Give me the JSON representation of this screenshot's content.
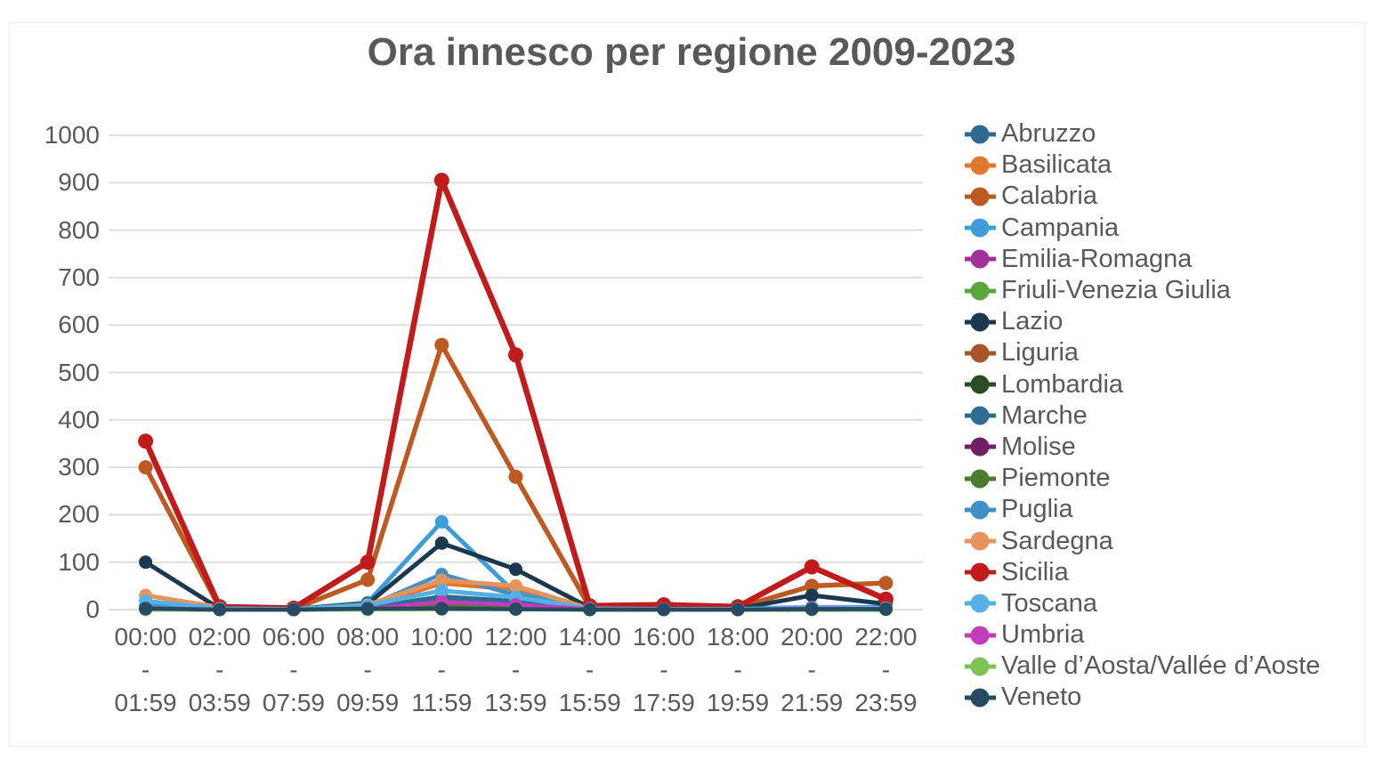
{
  "chart": {
    "title": "Ora innesco per regione 2009-2023"
  },
  "chart_data": {
    "type": "line",
    "title": "Ora innesco per regione 2009-2023",
    "xlabel": "",
    "ylabel": "",
    "ylim": [
      0,
      1000
    ],
    "ytick_step": 100,
    "yticks": [
      0,
      100,
      200,
      300,
      400,
      500,
      600,
      700,
      800,
      900,
      1000
    ],
    "grid": "horizontal",
    "legend_position": "right",
    "category_separator": "-",
    "categories": [
      {
        "from": "00:00",
        "to": "01:59"
      },
      {
        "from": "02:00",
        "to": "03:59"
      },
      {
        "from": "06:00",
        "to": "07:59"
      },
      {
        "from": "08:00",
        "to": "09:59"
      },
      {
        "from": "10:00",
        "to": "11:59"
      },
      {
        "from": "12:00",
        "to": "13:59"
      },
      {
        "from": "14:00",
        "to": "15:59"
      },
      {
        "from": "16:00",
        "to": "17:59"
      },
      {
        "from": "18:00",
        "to": "19:59"
      },
      {
        "from": "20:00",
        "to": "21:59"
      },
      {
        "from": "22:00",
        "to": "23:59"
      }
    ],
    "series": [
      {
        "name": "Abruzzo",
        "color": "#2E6A8F",
        "line_width": 4.5,
        "marker_r": 7,
        "values": [
          5,
          1,
          0,
          4,
          28,
          18,
          1,
          1,
          0,
          2,
          2
        ]
      },
      {
        "name": "Basilicata",
        "color": "#E0772E",
        "line_width": 4.5,
        "marker_r": 7,
        "values": [
          6,
          1,
          0,
          6,
          55,
          42,
          1,
          1,
          1,
          3,
          3
        ]
      },
      {
        "name": "Calabria",
        "color": "#BE5A21",
        "line_width": 5.5,
        "marker_r": 8,
        "values": [
          300,
          4,
          1,
          63,
          558,
          280,
          5,
          8,
          4,
          50,
          56
        ]
      },
      {
        "name": "Campania",
        "color": "#3E9CD9",
        "line_width": 5,
        "marker_r": 7.5,
        "values": [
          8,
          2,
          1,
          15,
          185,
          34,
          3,
          2,
          2,
          5,
          5
        ]
      },
      {
        "name": "Emilia-Romagna",
        "color": "#A23199",
        "line_width": 4.5,
        "marker_r": 7,
        "values": [
          2,
          0,
          0,
          2,
          12,
          8,
          0,
          0,
          0,
          1,
          1
        ]
      },
      {
        "name": "Friuli-Venezia Giulia",
        "color": "#5BA53C",
        "line_width": 4.5,
        "marker_r": 7,
        "values": [
          1,
          0,
          0,
          1,
          5,
          3,
          0,
          0,
          0,
          1,
          0
        ]
      },
      {
        "name": "Lazio",
        "color": "#1A394F",
        "line_width": 5,
        "marker_r": 7.5,
        "values": [
          100,
          2,
          1,
          12,
          140,
          85,
          4,
          3,
          2,
          30,
          12
        ]
      },
      {
        "name": "Liguria",
        "color": "#A65629",
        "line_width": 4.5,
        "marker_r": 7,
        "values": [
          2,
          0,
          0,
          2,
          9,
          6,
          0,
          0,
          0,
          1,
          1
        ]
      },
      {
        "name": "Lombardia",
        "color": "#2A4D26",
        "line_width": 4.5,
        "marker_r": 7,
        "values": [
          1,
          0,
          0,
          1,
          4,
          2,
          0,
          0,
          0,
          0,
          0
        ]
      },
      {
        "name": "Marche",
        "color": "#2F6D90",
        "line_width": 4.5,
        "marker_r": 7,
        "values": [
          3,
          0,
          0,
          3,
          20,
          12,
          1,
          0,
          0,
          1,
          1
        ]
      },
      {
        "name": "Molise",
        "color": "#6E2166",
        "line_width": 4.5,
        "marker_r": 7,
        "values": [
          1,
          0,
          0,
          1,
          3,
          2,
          0,
          0,
          0,
          0,
          0
        ]
      },
      {
        "name": "Piemonte",
        "color": "#4B7B2F",
        "line_width": 4.5,
        "marker_r": 7,
        "values": [
          1,
          0,
          0,
          1,
          6,
          4,
          0,
          0,
          0,
          0,
          0
        ]
      },
      {
        "name": "Puglia",
        "color": "#418FC4",
        "line_width": 4.5,
        "marker_r": 7,
        "values": [
          7,
          1,
          0,
          7,
          75,
          30,
          2,
          1,
          1,
          4,
          3
        ]
      },
      {
        "name": "Sardegna",
        "color": "#E6945C",
        "line_width": 5,
        "marker_r": 7.5,
        "values": [
          30,
          5,
          1,
          10,
          62,
          50,
          2,
          2,
          1,
          3,
          2
        ]
      },
      {
        "name": "Sicilia",
        "color": "#C01C1C",
        "line_width": 6.5,
        "marker_r": 8.5,
        "values": [
          355,
          6,
          3,
          100,
          905,
          537,
          8,
          10,
          6,
          90,
          22
        ]
      },
      {
        "name": "Toscana",
        "color": "#55B1E5",
        "line_width": 5,
        "marker_r": 7.5,
        "values": [
          18,
          2,
          1,
          9,
          40,
          26,
          2,
          1,
          1,
          4,
          3
        ]
      },
      {
        "name": "Umbria",
        "color": "#C53CBA",
        "line_width": 4.5,
        "marker_r": 7.5,
        "values": [
          2,
          0,
          0,
          2,
          16,
          10,
          1,
          0,
          0,
          2,
          1
        ]
      },
      {
        "name": "Valle d’Aosta/Vallée d’Aoste",
        "color": "#7DC455",
        "line_width": 4.5,
        "marker_r": 7.5,
        "values": [
          0,
          0,
          0,
          0,
          1,
          1,
          0,
          0,
          0,
          0,
          0
        ]
      },
      {
        "name": "Veneto",
        "color": "#254A61",
        "line_width": 4.5,
        "marker_r": 7.5,
        "values": [
          2,
          0,
          0,
          2,
          2,
          1,
          0,
          0,
          0,
          1,
          1
        ]
      }
    ],
    "colors": {
      "text": "#595959",
      "gridline": "#DEDEDE",
      "frame": "#ECECEC",
      "background": "#FFFFFF"
    }
  }
}
